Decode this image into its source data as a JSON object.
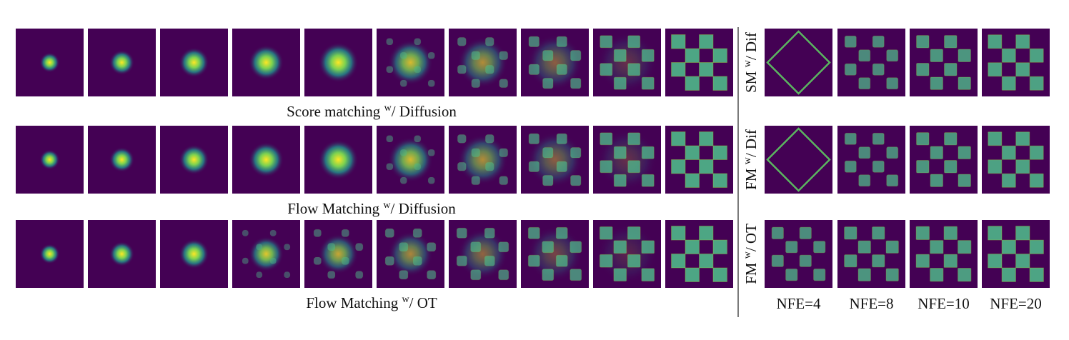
{
  "rows": [
    {
      "caption": {
        "pre": "Score matching ",
        "sup": "w",
        "post": "/ Diffusion"
      },
      "side": {
        "pre": "SM ",
        "sup": "w",
        "post": "/ Dif"
      }
    },
    {
      "caption": {
        "pre": "Flow Matching ",
        "sup": "w",
        "post": "/ Diffusion"
      },
      "side": {
        "pre": "FM ",
        "sup": "w",
        "post": "/ Dif"
      }
    },
    {
      "caption": {
        "pre": "Flow Matching ",
        "sup": "w",
        "post": "/ OT"
      },
      "side": {
        "pre": "FM ",
        "sup": "w",
        "post": "/ OT"
      }
    }
  ],
  "nfe_labels": [
    "NFE=4",
    "NFE=8",
    "NFE=10",
    "NFE=20"
  ]
}
